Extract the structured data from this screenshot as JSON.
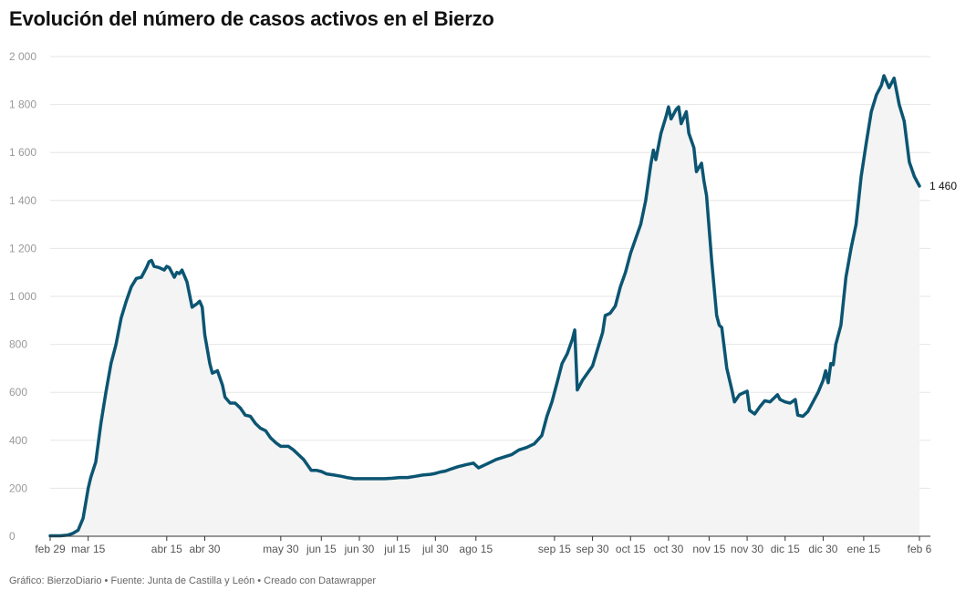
{
  "title": "Evolución del número de casos activos en el Bierzo",
  "footer": "Gráfico: BierzoDiario • Fuente: Junta de Castilla y León • Creado con Datawrapper",
  "colors": {
    "line": "#0b5572",
    "area": "#f4f4f4",
    "grid": "#e6e6e6",
    "axis": "#333333"
  },
  "chart_data": {
    "type": "area",
    "title": "Evolución del número de casos activos en el Bierzo",
    "xlabel": "",
    "ylabel": "",
    "ylim": [
      0,
      2000
    ],
    "yticks": [
      0,
      200,
      400,
      600,
      800,
      1000,
      1200,
      1400,
      1600,
      1800,
      2000
    ],
    "ytick_labels": [
      "0",
      "200",
      "400",
      "600",
      "800",
      "1 000",
      "1 200",
      "1 400",
      "1 600",
      "1 800",
      "2 000"
    ],
    "xlim": [
      "2020-02-29",
      "2021-02-06"
    ],
    "xticks": [
      {
        "date": "2020-02-29",
        "label": "feb 29"
      },
      {
        "date": "2020-03-15",
        "label": "mar 15"
      },
      {
        "date": "2020-04-15",
        "label": "abr 15"
      },
      {
        "date": "2020-04-30",
        "label": "abr 30"
      },
      {
        "date": "2020-05-30",
        "label": "may 30"
      },
      {
        "date": "2020-06-15",
        "label": "jun 15"
      },
      {
        "date": "2020-06-30",
        "label": "jun 30"
      },
      {
        "date": "2020-07-15",
        "label": "jul 15"
      },
      {
        "date": "2020-07-30",
        "label": "jul 30"
      },
      {
        "date": "2020-08-15",
        "label": "ago 15"
      },
      {
        "date": "2020-09-15",
        "label": "sep 15"
      },
      {
        "date": "2020-09-30",
        "label": "sep 30"
      },
      {
        "date": "2020-10-15",
        "label": "oct 15"
      },
      {
        "date": "2020-10-30",
        "label": "oct 30"
      },
      {
        "date": "2020-11-15",
        "label": "nov 15"
      },
      {
        "date": "2020-11-30",
        "label": "nov 30"
      },
      {
        "date": "2020-12-15",
        "label": "dic 15"
      },
      {
        "date": "2020-12-30",
        "label": "dic 30"
      },
      {
        "date": "2021-01-15",
        "label": "ene 15"
      },
      {
        "date": "2021-02-06",
        "label": "feb 6"
      }
    ],
    "grid": true,
    "series": [
      {
        "name": "",
        "points": [
          [
            "2020-02-29",
            2
          ],
          [
            "2020-03-04",
            2
          ],
          [
            "2020-03-07",
            5
          ],
          [
            "2020-03-09",
            12
          ],
          [
            "2020-03-11",
            25
          ],
          [
            "2020-03-13",
            75
          ],
          [
            "2020-03-15",
            200
          ],
          [
            "2020-03-16",
            245
          ],
          [
            "2020-03-18",
            310
          ],
          [
            "2020-03-20",
            470
          ],
          [
            "2020-03-22",
            600
          ],
          [
            "2020-03-24",
            720
          ],
          [
            "2020-03-26",
            800
          ],
          [
            "2020-03-28",
            910
          ],
          [
            "2020-03-30",
            980
          ],
          [
            "2020-04-01",
            1040
          ],
          [
            "2020-04-03",
            1075
          ],
          [
            "2020-04-05",
            1080
          ],
          [
            "2020-04-07",
            1120
          ],
          [
            "2020-04-08",
            1145
          ],
          [
            "2020-04-09",
            1150
          ],
          [
            "2020-04-10",
            1125
          ],
          [
            "2020-04-12",
            1120
          ],
          [
            "2020-04-14",
            1110
          ],
          [
            "2020-04-15",
            1125
          ],
          [
            "2020-04-16",
            1120
          ],
          [
            "2020-04-18",
            1080
          ],
          [
            "2020-04-19",
            1100
          ],
          [
            "2020-04-20",
            1095
          ],
          [
            "2020-04-21",
            1110
          ],
          [
            "2020-04-23",
            1060
          ],
          [
            "2020-04-25",
            955
          ],
          [
            "2020-04-27",
            970
          ],
          [
            "2020-04-28",
            980
          ],
          [
            "2020-04-29",
            955
          ],
          [
            "2020-04-30",
            840
          ],
          [
            "2020-05-02",
            720
          ],
          [
            "2020-05-03",
            680
          ],
          [
            "2020-05-05",
            690
          ],
          [
            "2020-05-07",
            630
          ],
          [
            "2020-05-08",
            580
          ],
          [
            "2020-05-10",
            555
          ],
          [
            "2020-05-12",
            555
          ],
          [
            "2020-05-14",
            535
          ],
          [
            "2020-05-16",
            505
          ],
          [
            "2020-05-18",
            500
          ],
          [
            "2020-05-20",
            470
          ],
          [
            "2020-05-22",
            450
          ],
          [
            "2020-05-24",
            440
          ],
          [
            "2020-05-26",
            410
          ],
          [
            "2020-05-28",
            390
          ],
          [
            "2020-05-30",
            375
          ],
          [
            "2020-06-02",
            375
          ],
          [
            "2020-06-04",
            360
          ],
          [
            "2020-06-06",
            340
          ],
          [
            "2020-06-08",
            320
          ],
          [
            "2020-06-10",
            290
          ],
          [
            "2020-06-11",
            275
          ],
          [
            "2020-06-13",
            275
          ],
          [
            "2020-06-15",
            270
          ],
          [
            "2020-06-17",
            260
          ],
          [
            "2020-06-20",
            255
          ],
          [
            "2020-06-23",
            250
          ],
          [
            "2020-06-25",
            245
          ],
          [
            "2020-06-28",
            240
          ],
          [
            "2020-07-01",
            240
          ],
          [
            "2020-07-04",
            240
          ],
          [
            "2020-07-07",
            240
          ],
          [
            "2020-07-10",
            240
          ],
          [
            "2020-07-13",
            242
          ],
          [
            "2020-07-16",
            245
          ],
          [
            "2020-07-19",
            245
          ],
          [
            "2020-07-22",
            250
          ],
          [
            "2020-07-25",
            255
          ],
          [
            "2020-07-28",
            258
          ],
          [
            "2020-07-30",
            262
          ],
          [
            "2020-08-01",
            268
          ],
          [
            "2020-08-03",
            272
          ],
          [
            "2020-08-05",
            280
          ],
          [
            "2020-08-08",
            290
          ],
          [
            "2020-08-11",
            298
          ],
          [
            "2020-08-14",
            305
          ],
          [
            "2020-08-16",
            285
          ],
          [
            "2020-08-18",
            295
          ],
          [
            "2020-08-20",
            305
          ],
          [
            "2020-08-23",
            320
          ],
          [
            "2020-08-26",
            330
          ],
          [
            "2020-08-29",
            340
          ],
          [
            "2020-09-01",
            360
          ],
          [
            "2020-09-04",
            370
          ],
          [
            "2020-09-07",
            385
          ],
          [
            "2020-09-10",
            420
          ],
          [
            "2020-09-12",
            500
          ],
          [
            "2020-09-14",
            560
          ],
          [
            "2020-09-16",
            640
          ],
          [
            "2020-09-18",
            720
          ],
          [
            "2020-09-20",
            760
          ],
          [
            "2020-09-22",
            820
          ],
          [
            "2020-09-23",
            860
          ],
          [
            "2020-09-24",
            610
          ],
          [
            "2020-09-26",
            650
          ],
          [
            "2020-09-28",
            680
          ],
          [
            "2020-09-30",
            710
          ],
          [
            "2020-10-02",
            780
          ],
          [
            "2020-10-04",
            850
          ],
          [
            "2020-10-05",
            920
          ],
          [
            "2020-10-07",
            930
          ],
          [
            "2020-10-09",
            960
          ],
          [
            "2020-10-11",
            1040
          ],
          [
            "2020-10-13",
            1100
          ],
          [
            "2020-10-15",
            1180
          ],
          [
            "2020-10-17",
            1240
          ],
          [
            "2020-10-19",
            1300
          ],
          [
            "2020-10-21",
            1400
          ],
          [
            "2020-10-23",
            1550
          ],
          [
            "2020-10-24",
            1610
          ],
          [
            "2020-10-25",
            1570
          ],
          [
            "2020-10-27",
            1680
          ],
          [
            "2020-10-29",
            1750
          ],
          [
            "2020-10-30",
            1790
          ],
          [
            "2020-10-31",
            1740
          ],
          [
            "2020-11-02",
            1780
          ],
          [
            "2020-11-03",
            1790
          ],
          [
            "2020-11-04",
            1720
          ],
          [
            "2020-11-06",
            1770
          ],
          [
            "2020-11-07",
            1680
          ],
          [
            "2020-11-09",
            1620
          ],
          [
            "2020-11-10",
            1520
          ],
          [
            "2020-11-12",
            1555
          ],
          [
            "2020-11-13",
            1480
          ],
          [
            "2020-11-14",
            1420
          ],
          [
            "2020-11-16",
            1150
          ],
          [
            "2020-11-18",
            920
          ],
          [
            "2020-11-19",
            880
          ],
          [
            "2020-11-20",
            870
          ],
          [
            "2020-11-22",
            700
          ],
          [
            "2020-11-24",
            610
          ],
          [
            "2020-11-25",
            560
          ],
          [
            "2020-11-27",
            590
          ],
          [
            "2020-11-29",
            600
          ],
          [
            "2020-11-30",
            605
          ],
          [
            "2020-12-01",
            525
          ],
          [
            "2020-12-03",
            510
          ],
          [
            "2020-12-05",
            540
          ],
          [
            "2020-12-07",
            565
          ],
          [
            "2020-12-09",
            560
          ],
          [
            "2020-12-11",
            580
          ],
          [
            "2020-12-12",
            590
          ],
          [
            "2020-12-13",
            570
          ],
          [
            "2020-12-15",
            560
          ],
          [
            "2020-12-17",
            555
          ],
          [
            "2020-12-19",
            570
          ],
          [
            "2020-12-20",
            505
          ],
          [
            "2020-12-22",
            500
          ],
          [
            "2020-12-24",
            520
          ],
          [
            "2020-12-26",
            560
          ],
          [
            "2020-12-28",
            600
          ],
          [
            "2020-12-30",
            650
          ],
          [
            "2020-12-31",
            690
          ],
          [
            "2021-01-01",
            640
          ],
          [
            "2021-01-02",
            720
          ],
          [
            "2021-01-03",
            715
          ],
          [
            "2021-01-04",
            800
          ],
          [
            "2021-01-06",
            880
          ],
          [
            "2021-01-08",
            1080
          ],
          [
            "2021-01-10",
            1200
          ],
          [
            "2021-01-12",
            1300
          ],
          [
            "2021-01-14",
            1500
          ],
          [
            "2021-01-16",
            1640
          ],
          [
            "2021-01-18",
            1770
          ],
          [
            "2021-01-20",
            1840
          ],
          [
            "2021-01-22",
            1880
          ],
          [
            "2021-01-23",
            1920
          ],
          [
            "2021-01-25",
            1870
          ],
          [
            "2021-01-27",
            1910
          ],
          [
            "2021-01-29",
            1800
          ],
          [
            "2021-01-31",
            1730
          ],
          [
            "2021-02-02",
            1560
          ],
          [
            "2021-02-04",
            1500
          ],
          [
            "2021-02-06",
            1460
          ]
        ]
      }
    ],
    "last_value_label": "1 460"
  }
}
